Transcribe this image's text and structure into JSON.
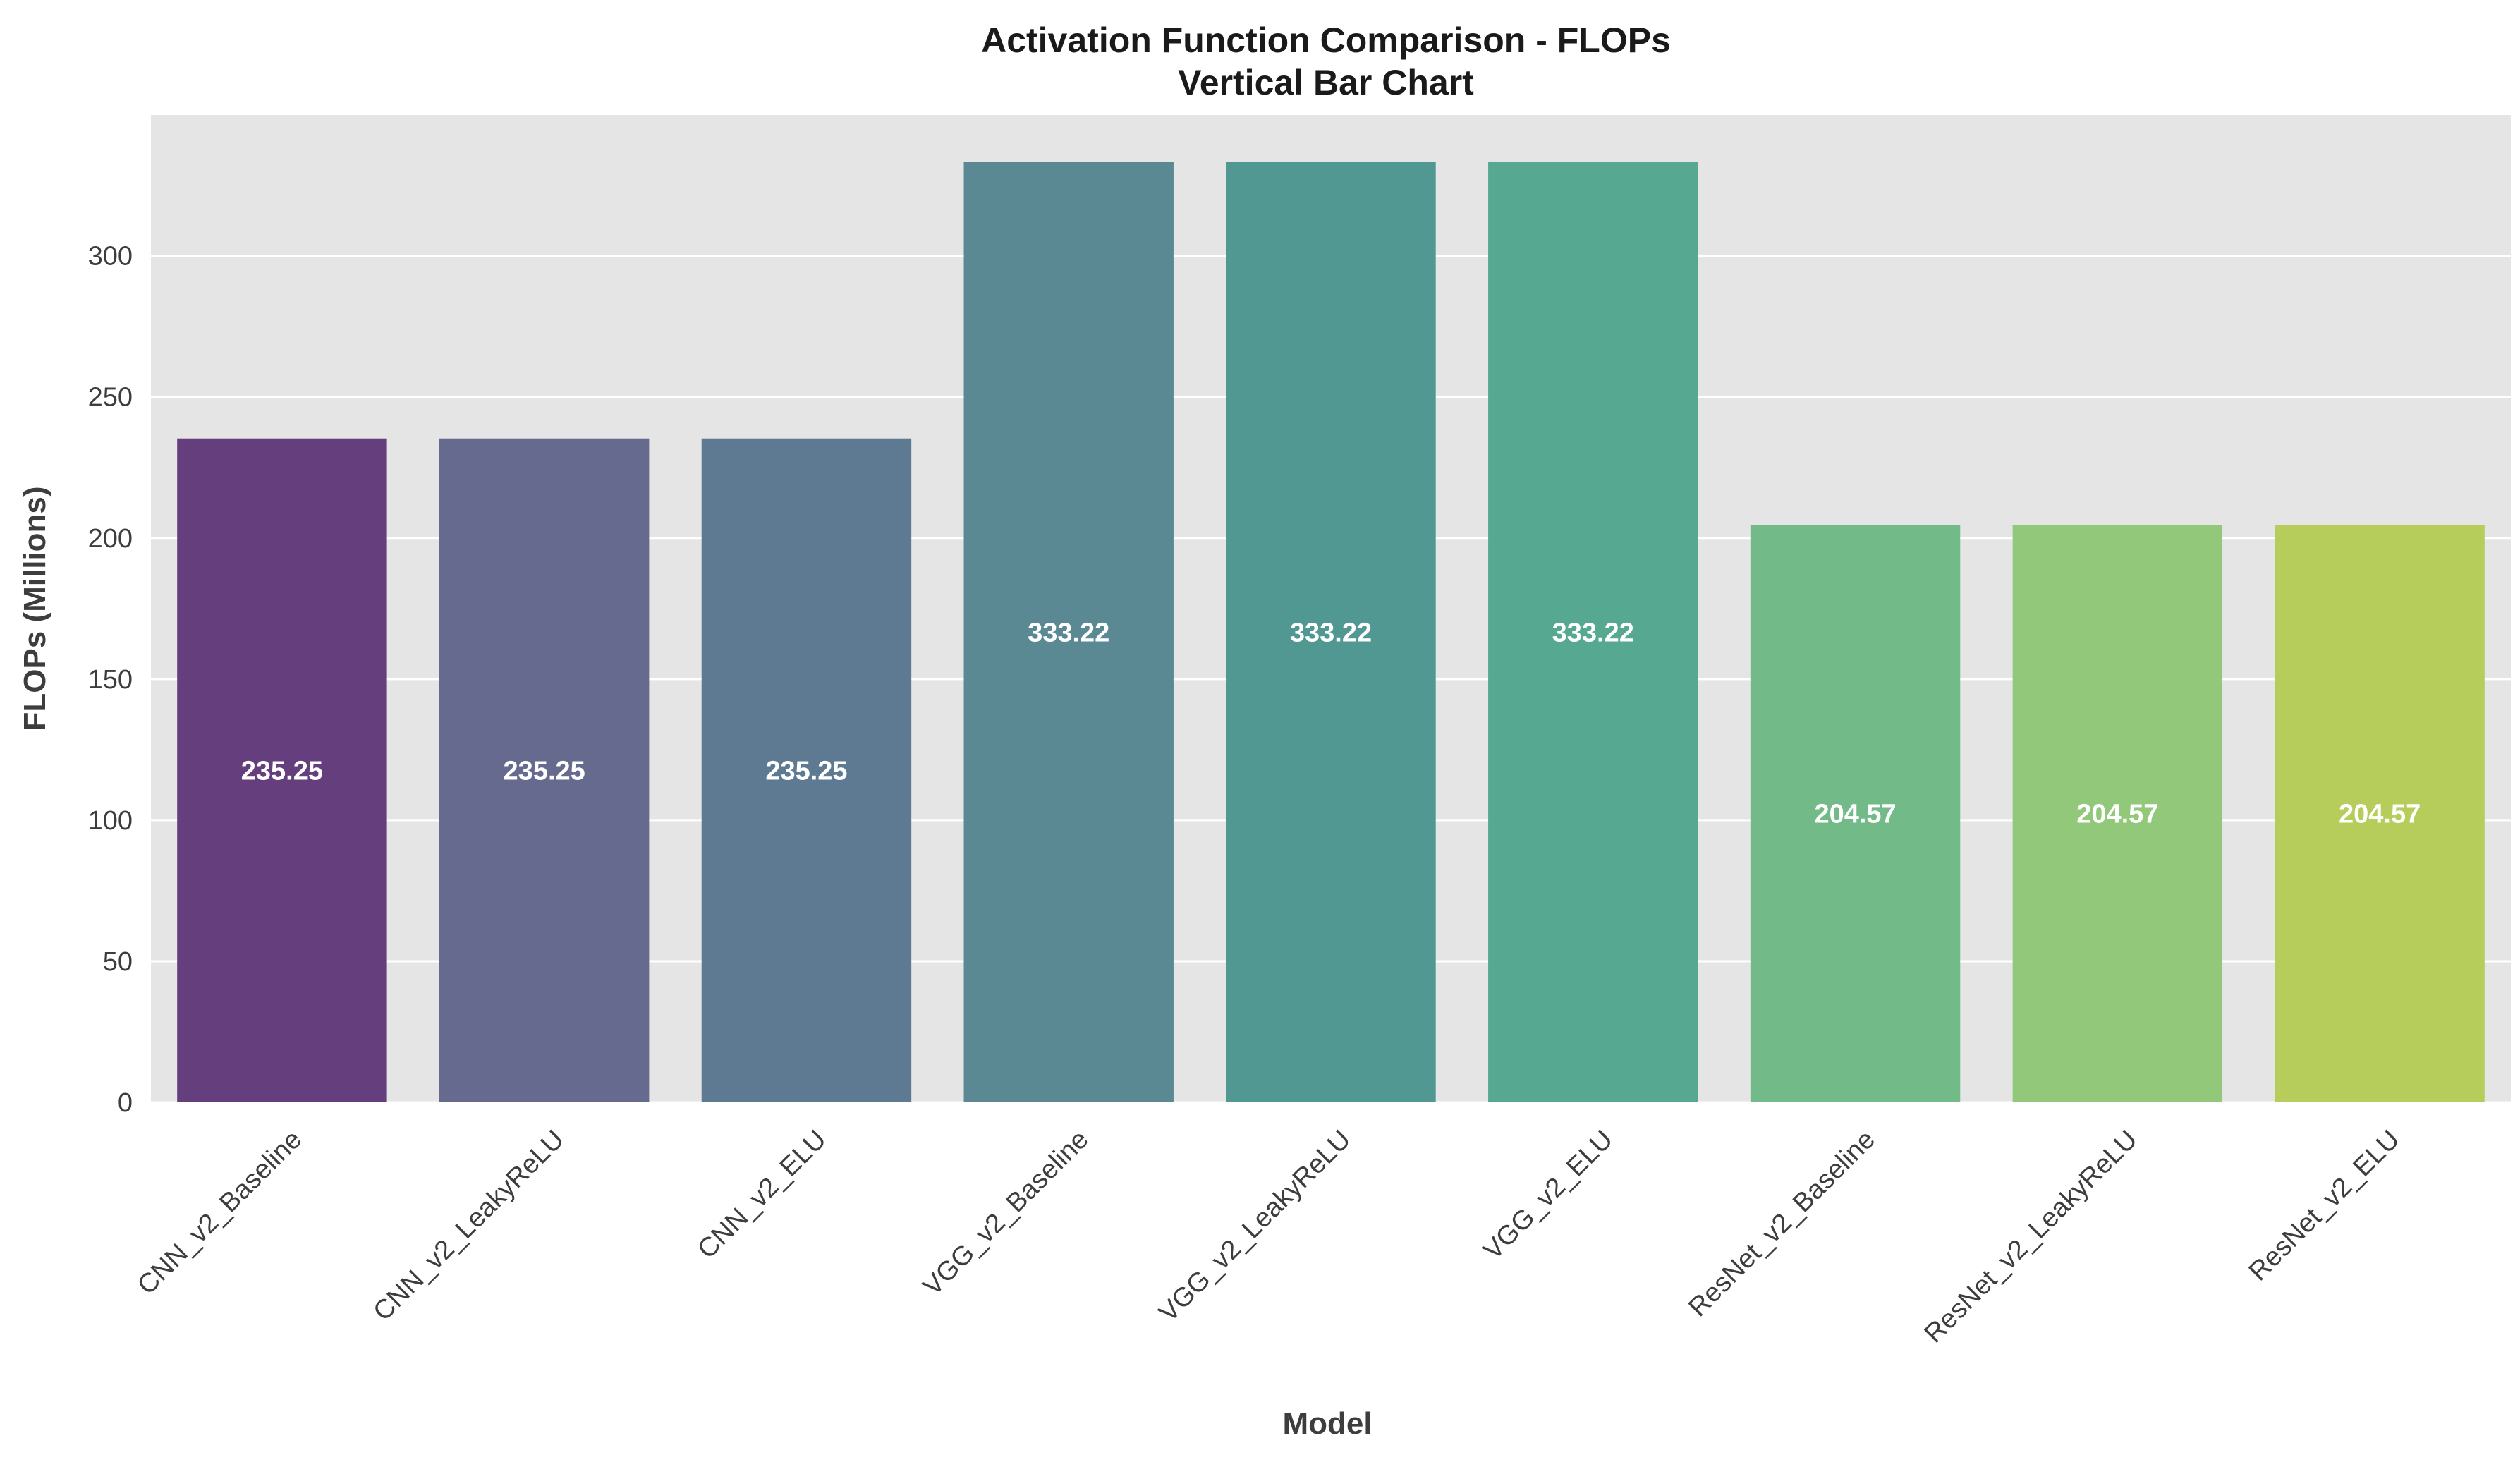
{
  "chart_data": {
    "type": "bar",
    "title": "Activation Function Comparison - FLOPs",
    "subtitle": "Vertical Bar Chart",
    "xlabel": "Model",
    "ylabel": "FLOPs (Millions)",
    "categories": [
      "CNN_v2_Baseline",
      "CNN_v2_LeakyReLU",
      "CNN_v2_ELU",
      "VGG_v2_Baseline",
      "VGG_v2_LeakyReLU",
      "VGG_v2_ELU",
      "ResNet_v2_Baseline",
      "ResNet_v2_LeakyReLU",
      "ResNet_v2_ELU"
    ],
    "values": [
      235.25,
      235.25,
      235.25,
      333.22,
      333.22,
      333.22,
      204.57,
      204.57,
      204.57
    ],
    "data_labels": [
      "235.25",
      "235.25",
      "235.25",
      "333.22",
      "333.22",
      "333.22",
      "204.57",
      "204.57",
      "204.57"
    ],
    "ylim": [
      0,
      349.9
    ],
    "yticks": [
      0,
      50,
      100,
      150,
      200,
      250,
      300
    ],
    "ytick_labels": [
      "0",
      "50",
      "100",
      "150",
      "200",
      "250",
      "300"
    ],
    "grid": true,
    "legend": "none",
    "colors": [
      "#472d7b",
      "#3b528b",
      "#2c728e",
      "#21908d",
      "#27ad81",
      "#5dc863",
      "#aadc32",
      "#fde725"
    ],
    "bar_colors": [
      "#653f7d",
      "#666a8e",
      "#5e7a93",
      "#5a8994",
      "#519792",
      "#56a890",
      "#72bb88",
      "#92c87a",
      "#b7cd5b"
    ],
    "background_color": "#e5e5e5",
    "grid_color": "#ffffff"
  }
}
